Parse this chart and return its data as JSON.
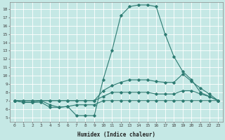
{
  "xlabel": "Humidex (Indice chaleur)",
  "bg_color": "#c5e8e5",
  "line_color": "#2d7b72",
  "grid_color": "#ffffff",
  "xlim": [
    -0.5,
    23.5
  ],
  "ylim": [
    4.5,
    18.8
  ],
  "xticks": [
    0,
    1,
    2,
    3,
    4,
    5,
    6,
    7,
    8,
    9,
    10,
    11,
    12,
    13,
    14,
    15,
    16,
    17,
    18,
    19,
    20,
    21,
    22,
    23
  ],
  "yticks": [
    5,
    6,
    7,
    8,
    9,
    10,
    11,
    12,
    13,
    14,
    15,
    16,
    17,
    18
  ],
  "curve1": [
    7.0,
    6.8,
    6.8,
    7.0,
    6.5,
    6.2,
    6.3,
    5.2,
    5.2,
    5.2,
    9.5,
    13.0,
    17.2,
    18.3,
    18.5,
    18.5,
    18.3,
    15.0,
    12.3,
    10.5,
    9.5,
    8.0,
    7.5,
    7.0
  ],
  "curve2": [
    7.0,
    7.0,
    7.0,
    7.0,
    7.0,
    7.0,
    7.0,
    7.0,
    7.0,
    7.0,
    8.2,
    8.8,
    9.2,
    9.5,
    9.5,
    9.5,
    9.3,
    9.2,
    9.2,
    10.2,
    9.3,
    8.5,
    7.8,
    7.0
  ],
  "curve3": [
    7.0,
    7.0,
    7.0,
    7.0,
    7.0,
    7.0,
    7.0,
    7.0,
    7.0,
    7.0,
    7.5,
    8.0,
    8.0,
    8.0,
    8.0,
    8.0,
    7.8,
    7.8,
    7.8,
    8.2,
    8.2,
    7.8,
    7.5,
    7.0
  ],
  "curve4": [
    7.0,
    6.8,
    6.8,
    6.8,
    6.2,
    6.2,
    6.3,
    6.5,
    6.5,
    6.5,
    7.0,
    7.0,
    7.0,
    7.0,
    7.0,
    7.0,
    7.0,
    7.0,
    7.0,
    7.0,
    7.0,
    7.0,
    7.0,
    7.0
  ]
}
